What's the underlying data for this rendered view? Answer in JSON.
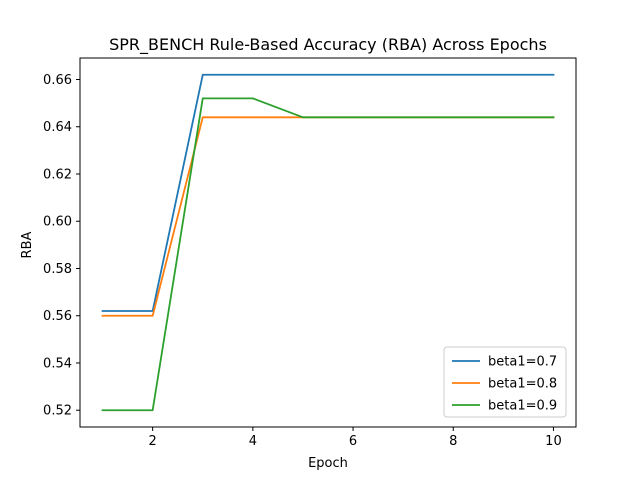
{
  "chart_data": {
    "type": "line",
    "title": "SPR_BENCH Rule-Based Accuracy (RBA) Across Epochs",
    "xlabel": "Epoch",
    "ylabel": "RBA",
    "xlim": [
      0.55,
      10.45
    ],
    "ylim": [
      0.5129,
      0.6691
    ],
    "x_ticks": [
      2,
      4,
      6,
      8,
      10
    ],
    "x_tick_labels": [
      "2",
      "4",
      "6",
      "8",
      "10"
    ],
    "y_ticks": [
      0.52,
      0.54,
      0.56,
      0.58,
      0.6,
      0.62,
      0.64,
      0.66
    ],
    "y_tick_labels": [
      "0.52",
      "0.54",
      "0.56",
      "0.58",
      "0.60",
      "0.62",
      "0.64",
      "0.66"
    ],
    "grid": false,
    "legend_position": "lower right",
    "x": [
      1,
      2,
      3,
      4,
      5,
      6,
      7,
      8,
      9,
      10
    ],
    "series": [
      {
        "name": "beta1=0.7",
        "color": "#1f77b4",
        "values": [
          0.562,
          0.562,
          0.662,
          0.662,
          0.662,
          0.662,
          0.662,
          0.662,
          0.662,
          0.662
        ]
      },
      {
        "name": "beta1=0.8",
        "color": "#ff7f0e",
        "values": [
          0.56,
          0.56,
          0.644,
          0.644,
          0.644,
          0.644,
          0.644,
          0.644,
          0.644,
          0.644
        ]
      },
      {
        "name": "beta1=0.9",
        "color": "#2ca02c",
        "values": [
          0.52,
          0.52,
          0.652,
          0.652,
          0.644,
          0.644,
          0.644,
          0.644,
          0.644,
          0.644
        ]
      }
    ]
  }
}
